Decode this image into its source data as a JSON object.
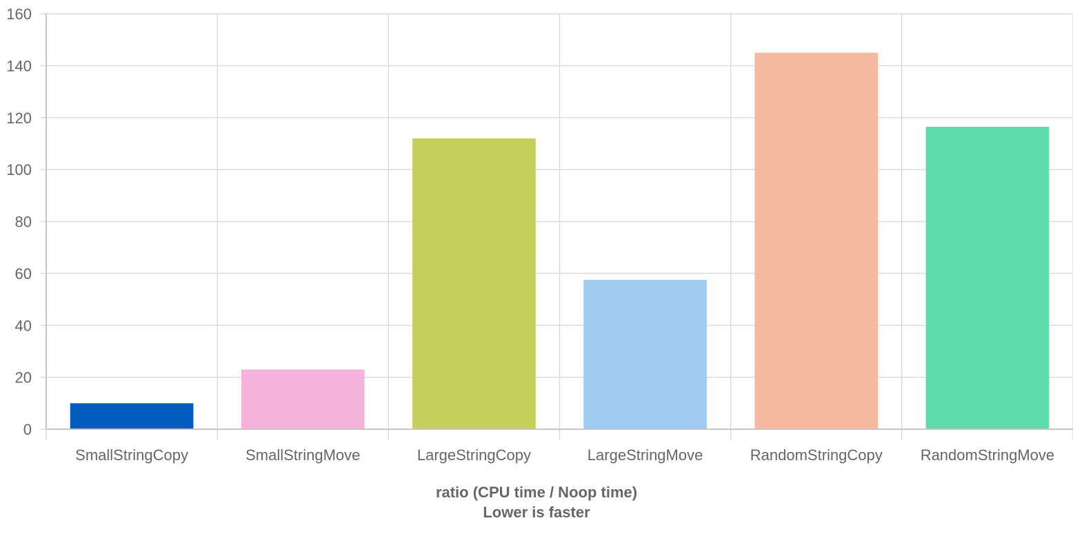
{
  "chart_data": {
    "type": "bar",
    "categories": [
      "SmallStringCopy",
      "SmallStringMove",
      "LargeStringCopy",
      "LargeStringMove",
      "RandomStringCopy",
      "RandomStringMove"
    ],
    "values": [
      10,
      23,
      112,
      57.5,
      145,
      116.5
    ],
    "colors": [
      "#005cbf",
      "#f4b3d9",
      "#c5cf5b",
      "#a2cbf4",
      "#f5b8a0",
      "#5bdca8"
    ],
    "caption_line1": "ratio (CPU time / Noop time)",
    "caption_line2": "Lower is faster",
    "ylim": [
      0,
      160
    ],
    "yticks": [
      0,
      20,
      40,
      60,
      80,
      100,
      120,
      140,
      160
    ],
    "grid": true
  }
}
